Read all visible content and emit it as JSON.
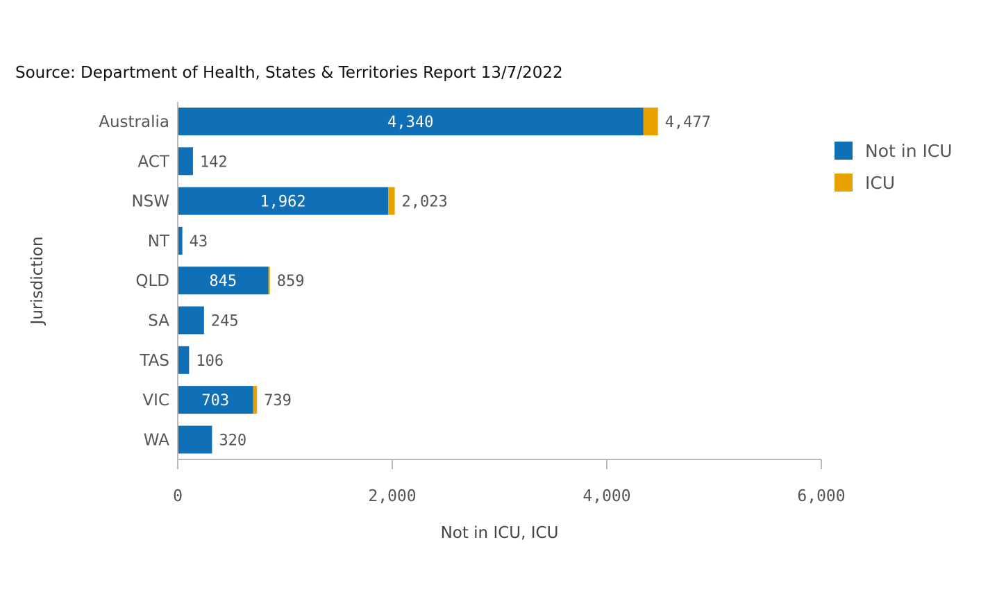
{
  "source": "Source: Department of Health, States & Territories Report 13/7/2022",
  "colors": {
    "not_in_icu": "#0f6fb7",
    "icu": "#e8a200",
    "axis": "#bbbbbb"
  },
  "chart_data": {
    "type": "bar",
    "orientation": "horizontal",
    "stacked": true,
    "categories": [
      "Australia",
      "ACT",
      "NSW",
      "NT",
      "QLD",
      "SA",
      "TAS",
      "VIC",
      "WA"
    ],
    "series": [
      {
        "name": "Not in ICU",
        "values": [
          4340,
          142,
          1962,
          43,
          845,
          245,
          106,
          703,
          320
        ],
        "color": "#0f6fb7"
      },
      {
        "name": "ICU",
        "values": [
          137,
          0,
          61,
          0,
          14,
          0,
          0,
          36,
          0
        ],
        "color": "#e8a200"
      }
    ],
    "totals": [
      4477,
      142,
      2023,
      43,
      859,
      245,
      106,
      739,
      320
    ],
    "inside_labels": [
      "4,340",
      "",
      "1,962",
      "",
      "845",
      "",
      "",
      "703",
      ""
    ],
    "total_labels": [
      "4,477",
      "142",
      "2,023",
      "43",
      "859",
      "245",
      "106",
      "739",
      "320"
    ],
    "xlabel": "Not in ICU, ICU",
    "ylabel": "Jurisdiction",
    "xlim": [
      0,
      6000
    ],
    "xticks": [
      0,
      2000,
      4000,
      6000
    ],
    "xtick_labels": [
      "0",
      "2,000",
      "4,000",
      "6,000"
    ],
    "legend_position": "right",
    "grid": false
  }
}
